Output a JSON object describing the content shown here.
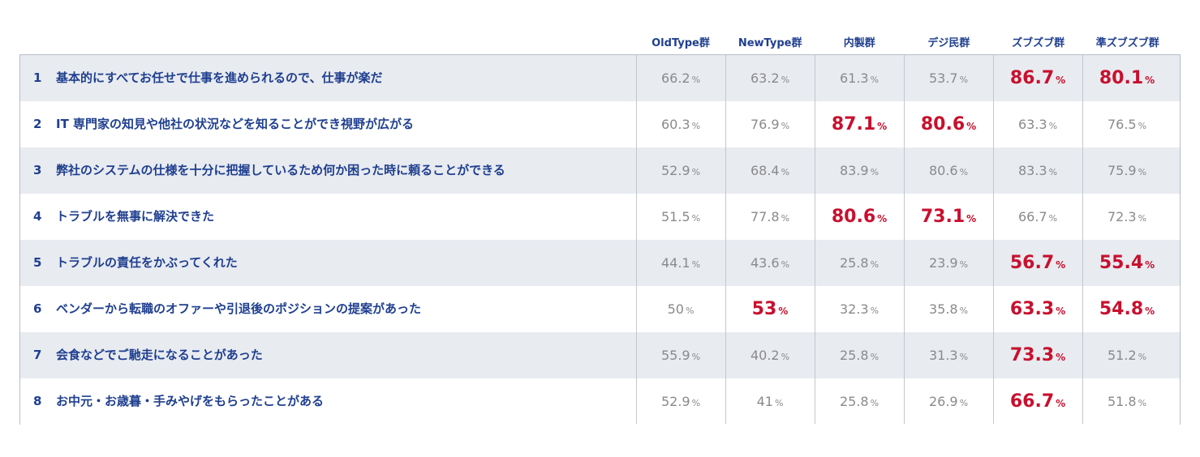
{
  "chart_data": {
    "type": "table",
    "unit": "%",
    "columns": [
      "OldType群",
      "NewType群",
      "内製群",
      "デジ民群",
      "ズブズブ群",
      "準ズブズブ群"
    ],
    "rows": [
      {
        "num": "1",
        "label": "基本的にすべてお任せで仕事を進められるので、仕事が楽だ",
        "values": [
          "66.2",
          "63.2",
          "61.3",
          "53.7",
          "86.7",
          "80.1"
        ],
        "highlight": [
          false,
          false,
          false,
          false,
          true,
          true
        ]
      },
      {
        "num": "2",
        "label": "IT 専門家の知見や他社の状況などを知ることができ視野が広がる",
        "values": [
          "60.3",
          "76.9",
          "87.1",
          "80.6",
          "63.3",
          "76.5"
        ],
        "highlight": [
          false,
          false,
          true,
          true,
          false,
          false
        ]
      },
      {
        "num": "3",
        "label": "弊社のシステムの仕様を十分に把握しているため何か困った時に頼ることができる",
        "values": [
          "52.9",
          "68.4",
          "83.9",
          "80.6",
          "83.3",
          "75.9"
        ],
        "highlight": [
          false,
          false,
          false,
          false,
          false,
          false
        ]
      },
      {
        "num": "4",
        "label": "トラブルを無事に解決できた",
        "values": [
          "51.5",
          "77.8",
          "80.6",
          "73.1",
          "66.7",
          "72.3"
        ],
        "highlight": [
          false,
          false,
          true,
          true,
          false,
          false
        ]
      },
      {
        "num": "5",
        "label": "トラブルの責任をかぶってくれた",
        "values": [
          "44.1",
          "43.6",
          "25.8",
          "23.9",
          "56.7",
          "55.4"
        ],
        "highlight": [
          false,
          false,
          false,
          false,
          true,
          true
        ]
      },
      {
        "num": "6",
        "label": "ベンダーから転職のオファーや引退後のポジションの提案があった",
        "values": [
          "50",
          "53",
          "32.3",
          "35.8",
          "63.3",
          "54.8"
        ],
        "highlight": [
          false,
          true,
          false,
          false,
          true,
          true
        ]
      },
      {
        "num": "7",
        "label": "会食などでご馳走になることがあった",
        "values": [
          "55.9",
          "40.2",
          "25.8",
          "31.3",
          "73.3",
          "51.2"
        ],
        "highlight": [
          false,
          false,
          false,
          false,
          true,
          false
        ]
      },
      {
        "num": "8",
        "label": "お中元・お歳暮・手みやげをもらったことがある",
        "values": [
          "52.9",
          "41",
          "25.8",
          "26.9",
          "66.7",
          "51.8"
        ],
        "highlight": [
          false,
          false,
          false,
          false,
          true,
          false
        ]
      }
    ]
  }
}
